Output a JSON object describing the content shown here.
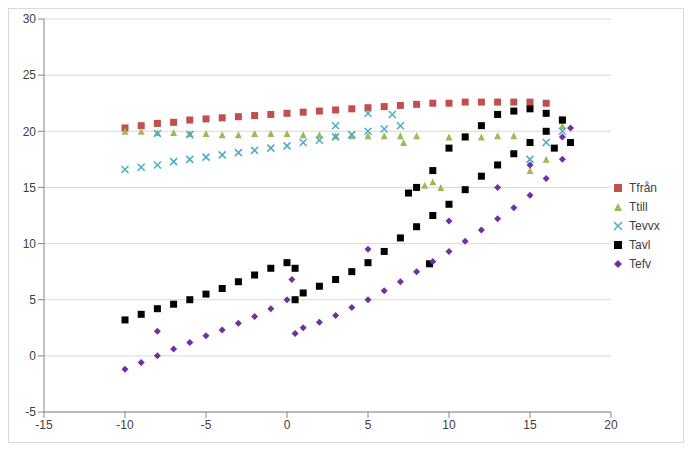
{
  "chart_data": {
    "type": "scatter",
    "xlim": [
      -15,
      20
    ],
    "xticks": [
      -15,
      -10,
      -5,
      0,
      5,
      10,
      15,
      20
    ],
    "ylim": [
      -5,
      30
    ],
    "yticks": [
      -5,
      0,
      5,
      10,
      15,
      20,
      25,
      30
    ],
    "grid": true,
    "legend": "right",
    "series": [
      {
        "name": "Tfrån",
        "color": "#c0504d",
        "marker": "square",
        "x": [
          -10,
          -9,
          -8,
          -7,
          -6,
          -5,
          -4,
          -3,
          -2,
          -1,
          0,
          1,
          2,
          3,
          4,
          5,
          6,
          7,
          8,
          9,
          10,
          11,
          12,
          13,
          14,
          15,
          16,
          17
        ],
        "y": [
          20.3,
          20.5,
          20.7,
          20.8,
          21,
          21.1,
          21.2,
          21.3,
          21.4,
          21.5,
          21.6,
          21.7,
          21.8,
          21.9,
          22,
          22.1,
          22.2,
          22.3,
          22.4,
          22.5,
          22.5,
          22.6,
          22.6,
          22.6,
          22.6,
          22.6,
          22.5,
          21
        ]
      },
      {
        "name": "Ttill",
        "color": "#9bbb59",
        "marker": "triangle",
        "x": [
          -10,
          -9,
          -8,
          -7,
          -6,
          -5,
          -4,
          -3,
          -2,
          -1,
          0,
          1,
          2,
          3,
          4,
          5,
          6,
          7,
          7.2,
          8,
          8.5,
          9,
          9.5,
          10,
          11,
          12,
          13,
          14,
          15,
          16,
          17
        ],
        "y": [
          20,
          20,
          19.9,
          19.9,
          19.8,
          19.8,
          19.7,
          19.7,
          19.8,
          19.8,
          19.8,
          19.7,
          19.7,
          19.6,
          19.6,
          19.6,
          19.6,
          19.6,
          19,
          19.6,
          15.2,
          15.5,
          15,
          19.5,
          19.5,
          19.5,
          19.6,
          19.6,
          16.5,
          17.5,
          20.5
        ]
      },
      {
        "name": "Tevvx",
        "color": "#4bacc6",
        "marker": "x",
        "x": [
          -10,
          -9,
          -8,
          -7,
          -6,
          -5,
          -4,
          -3,
          -2,
          -1,
          0,
          1,
          2,
          3,
          4,
          5,
          6,
          7,
          -8,
          -6,
          3,
          5,
          6.5,
          15,
          16,
          17
        ],
        "y": [
          16.6,
          16.8,
          17,
          17.3,
          17.5,
          17.7,
          17.9,
          18.1,
          18.3,
          18.5,
          18.7,
          19,
          19.2,
          19.5,
          19.7,
          20,
          20.2,
          20.5,
          19.8,
          19.7,
          20.5,
          21.6,
          21.5,
          17.5,
          19,
          20
        ]
      },
      {
        "name": "Tavl",
        "color": "#000000",
        "marker": "square",
        "x": [
          -10,
          -9,
          -8,
          -7,
          -6,
          -5,
          -4,
          -3,
          -2,
          -1,
          0,
          0.5,
          0.5,
          1,
          2,
          3,
          4,
          5,
          6,
          7,
          8,
          9,
          10,
          11,
          12,
          13,
          14,
          15,
          16,
          17,
          7.5,
          8,
          9,
          10,
          11,
          12,
          13,
          14,
          15,
          16,
          8.8,
          16.5,
          17.5
        ],
        "y": [
          3.2,
          3.7,
          4.2,
          4.6,
          5,
          5.5,
          6,
          6.6,
          7.2,
          7.8,
          8.3,
          7.8,
          5,
          5.6,
          6.2,
          6.8,
          7.5,
          8.3,
          9.3,
          10.5,
          11.5,
          12.5,
          13.5,
          14.8,
          16,
          17,
          18,
          19,
          20,
          21,
          14.5,
          15,
          16.5,
          18.5,
          19.5,
          20.5,
          21.5,
          21.8,
          22,
          21.6,
          8.2,
          18.5,
          19
        ]
      },
      {
        "name": "Tefv",
        "color": "#7030a0",
        "marker": "diamond",
        "x": [
          -10,
          -9,
          -8,
          -7,
          -6,
          -5,
          -4,
          -3,
          -2,
          -1,
          0,
          0.3,
          0.5,
          1,
          2,
          3,
          4,
          5,
          6,
          7,
          8,
          9,
          10,
          11,
          12,
          13,
          14,
          15,
          16,
          17,
          17.5,
          -8,
          5,
          10,
          13,
          15,
          17
        ],
        "y": [
          -1.2,
          -0.6,
          0,
          0.6,
          1.2,
          1.8,
          2.3,
          2.9,
          3.5,
          4.2,
          5,
          6.8,
          2,
          2.5,
          3,
          3.6,
          4.3,
          5,
          5.8,
          6.6,
          7.5,
          8.4,
          9.3,
          10.2,
          11.2,
          12.2,
          13.2,
          14.3,
          15.8,
          17.5,
          20.3,
          2.2,
          9.5,
          12,
          15,
          17,
          19.5
        ]
      }
    ]
  }
}
